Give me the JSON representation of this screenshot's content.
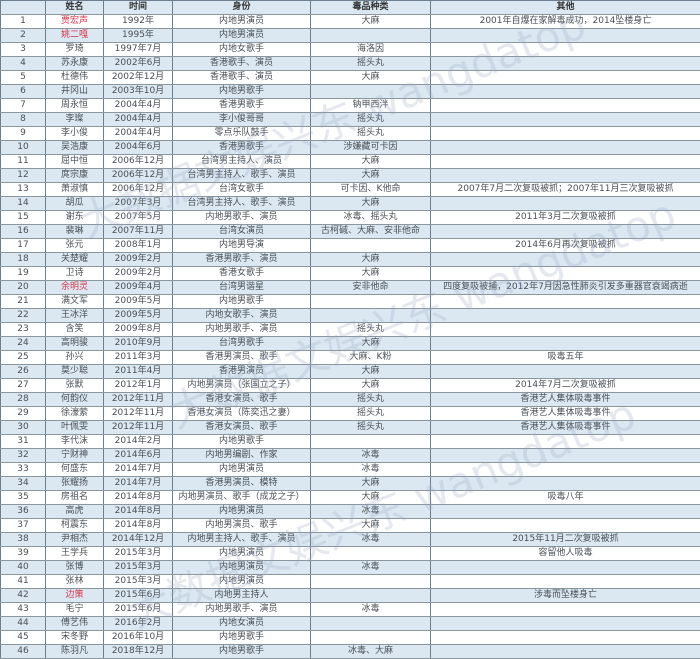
{
  "headers": [
    "",
    "姓名",
    "时间",
    "身份",
    "毒品种类",
    "其他"
  ],
  "watermark": "大数据文娱兴东 wangdatop",
  "highlight_color": "#d6374a",
  "rows": [
    {
      "no": "1",
      "name": "贾宏声",
      "time": "1992年",
      "identity": "内地男演员",
      "drug": "大麻",
      "other": "2001年自爆在家解毒成功，2014坠楼身亡",
      "red": true
    },
    {
      "no": "2",
      "name": "姚二嘎",
      "time": "1995年",
      "identity": "内地男演员",
      "drug": "",
      "other": "",
      "red": true
    },
    {
      "no": "3",
      "name": "罗琦",
      "time": "1997年7月",
      "identity": "内地女歌手",
      "drug": "海洛因",
      "other": ""
    },
    {
      "no": "4",
      "name": "苏永康",
      "time": "2002年6月",
      "identity": "香港歌手、演员",
      "drug": "摇头丸",
      "other": ""
    },
    {
      "no": "5",
      "name": "杜德伟",
      "time": "2002年12月",
      "identity": "香港歌手、演员",
      "drug": "大麻",
      "other": ""
    },
    {
      "no": "6",
      "name": "井冈山",
      "time": "2003年10月",
      "identity": "内地男歌手",
      "drug": "",
      "other": ""
    },
    {
      "no": "7",
      "name": "周永恒",
      "time": "2004年4月",
      "identity": "香港男歌手",
      "drug": "钠甲西泮",
      "other": ""
    },
    {
      "no": "8",
      "name": "李璨",
      "time": "2004年4月",
      "identity": "李小俊哥哥",
      "drug": "摇头丸",
      "other": ""
    },
    {
      "no": "9",
      "name": "李小俊",
      "time": "2004年4月",
      "identity": "零点乐队鼓手",
      "drug": "摇头丸",
      "other": ""
    },
    {
      "no": "10",
      "name": "吴浩康",
      "time": "2004年6月",
      "identity": "香港男歌手",
      "drug": "涉嫌藏可卡因",
      "other": ""
    },
    {
      "no": "11",
      "name": "屈中恒",
      "time": "2006年12月",
      "identity": "台湾男主持人、演员",
      "drug": "大麻",
      "other": ""
    },
    {
      "no": "12",
      "name": "庹宗康",
      "time": "2006年12月",
      "identity": "台湾男主持人、歌手、演员",
      "drug": "大麻",
      "other": ""
    },
    {
      "no": "13",
      "name": "萧淑慎",
      "time": "2006年12月",
      "identity": "台湾女歌手",
      "drug": "可卡因、K他命",
      "other": "2007年7月二次复吸被抓；2007年11月三次复吸被抓"
    },
    {
      "no": "14",
      "name": "胡瓜",
      "time": "2007年3月",
      "identity": "台湾男主持人、歌手、演员",
      "drug": "大麻",
      "other": ""
    },
    {
      "no": "15",
      "name": "谢东",
      "time": "2007年5月",
      "identity": "内地男歌手、演员",
      "drug": "冰毒、摇头丸",
      "other": "2011年3月二次复吸被抓"
    },
    {
      "no": "16",
      "name": "裴琳",
      "time": "2007年11月",
      "identity": "台湾女演员",
      "drug": "古柯碱、大麻、安非他命",
      "other": ""
    },
    {
      "no": "17",
      "name": "张元",
      "time": "2008年1月",
      "identity": "内地男导演",
      "drug": "",
      "other": "2014年6月再次复吸被抓"
    },
    {
      "no": "18",
      "name": "关楚耀",
      "time": "2009年2月",
      "identity": "香港男歌手、演员",
      "drug": "大麻",
      "other": ""
    },
    {
      "no": "19",
      "name": "卫诗",
      "time": "2009年2月",
      "identity": "香港女歌手",
      "drug": "大麻",
      "other": ""
    },
    {
      "no": "20",
      "name": "余明灵",
      "time": "2009年4月",
      "identity": "台湾男谐星",
      "drug": "安非他命",
      "other": "四度复吸被捕，2012年7月因急性肺炎引发多重器官衰竭病逝",
      "red": true
    },
    {
      "no": "21",
      "name": "满文军",
      "time": "2009年5月",
      "identity": "内地男歌手",
      "drug": "",
      "other": ""
    },
    {
      "no": "22",
      "name": "王冰洋",
      "time": "2009年5月",
      "identity": "内地女歌手、演员",
      "drug": "",
      "other": ""
    },
    {
      "no": "23",
      "name": "含笑",
      "time": "2009年8月",
      "identity": "内地男歌手、演员",
      "drug": "摇头丸",
      "other": ""
    },
    {
      "no": "24",
      "name": "高明骏",
      "time": "2010年9月",
      "identity": "台湾男歌手",
      "drug": "大麻",
      "other": ""
    },
    {
      "no": "25",
      "name": "孙兴",
      "time": "2011年3月",
      "identity": "香港男演员、歌手",
      "drug": "大麻、K粉",
      "other": "吸毒五年"
    },
    {
      "no": "26",
      "name": "莫少聪",
      "time": "2011年4月",
      "identity": "香港男演员",
      "drug": "大麻",
      "other": ""
    },
    {
      "no": "27",
      "name": "张默",
      "time": "2012年1月",
      "identity": "内地男演员（张国立之子）",
      "drug": "大麻",
      "other": "2014年7月二次复吸被抓"
    },
    {
      "no": "28",
      "name": "何韵仪",
      "time": "2012年11月",
      "identity": "香港女演员、歌手",
      "drug": "摇头丸",
      "other": "香港艺人集体吸毒事件"
    },
    {
      "no": "29",
      "name": "徐濠萦",
      "time": "2012年11月",
      "identity": "香港女演员（陈奕迅之妻）",
      "drug": "摇头丸",
      "other": "香港艺人集体吸毒事件"
    },
    {
      "no": "30",
      "name": "叶佩雯",
      "time": "2012年11月",
      "identity": "香港女演员、歌手",
      "drug": "摇头丸",
      "other": "香港艺人集体吸毒事件"
    },
    {
      "no": "31",
      "name": "李代沫",
      "time": "2014年2月",
      "identity": "内地男歌手",
      "drug": "",
      "other": ""
    },
    {
      "no": "32",
      "name": "宁财神",
      "time": "2014年6月",
      "identity": "内地男编剧、作家",
      "drug": "冰毒",
      "other": ""
    },
    {
      "no": "33",
      "name": "何盛东",
      "time": "2014年7月",
      "identity": "内地男演员",
      "drug": "冰毒",
      "other": ""
    },
    {
      "no": "34",
      "name": "张耀扬",
      "time": "2014年7月",
      "identity": "香港男演员、模特",
      "drug": "大麻",
      "other": ""
    },
    {
      "no": "35",
      "name": "房祖名",
      "time": "2014年8月",
      "identity": "内地男演员、歌手（成龙之子）",
      "drug": "大麻",
      "other": "吸毒八年"
    },
    {
      "no": "36",
      "name": "高虎",
      "time": "2014年8月",
      "identity": "内地男演员",
      "drug": "冰毒",
      "other": ""
    },
    {
      "no": "37",
      "name": "柯震东",
      "time": "2014年8月",
      "identity": "内地男演员、歌手",
      "drug": "大麻",
      "other": ""
    },
    {
      "no": "38",
      "name": "尹相杰",
      "time": "2014年12月",
      "identity": "内地男主持人、歌手、演员",
      "drug": "冰毒",
      "other": "2015年11月二次复吸被抓"
    },
    {
      "no": "39",
      "name": "王学兵",
      "time": "2015年3月",
      "identity": "内地男演员",
      "drug": "",
      "other": "容留他人吸毒"
    },
    {
      "no": "40",
      "name": "张博",
      "time": "2015年3月",
      "identity": "内地男演员",
      "drug": "冰毒",
      "other": ""
    },
    {
      "no": "41",
      "name": "张林",
      "time": "2015年3月",
      "identity": "内地男演员",
      "drug": "",
      "other": ""
    },
    {
      "no": "42",
      "name": "边策",
      "time": "2015年6月",
      "identity": "内地男主持人",
      "drug": "",
      "other": "涉毒而坠楼身亡",
      "red": true
    },
    {
      "no": "43",
      "name": "毛宁",
      "time": "2015年6月",
      "identity": "内地男歌手、演员",
      "drug": "冰毒",
      "other": ""
    },
    {
      "no": "44",
      "name": "傅艺伟",
      "time": "2016年2月",
      "identity": "内地女演员",
      "drug": "",
      "other": ""
    },
    {
      "no": "45",
      "name": "宋冬野",
      "time": "2016年10月",
      "identity": "内地男歌手",
      "drug": "",
      "other": ""
    },
    {
      "no": "46",
      "name": "陈羽凡",
      "time": "2018年12月",
      "identity": "内地男歌手",
      "drug": "冰毒、大麻",
      "other": ""
    }
  ]
}
